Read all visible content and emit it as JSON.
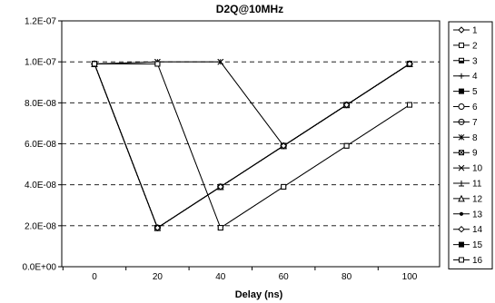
{
  "chart_data": {
    "type": "line",
    "title": "D2Q@10MHz",
    "xlabel": "Delay (ns)",
    "ylabel": "",
    "x": [
      0,
      20,
      40,
      60,
      80,
      100
    ],
    "x_ticks": [
      "0",
      "20",
      "40",
      "60",
      "80",
      "100"
    ],
    "ylim": [
      0,
      1.2e-07
    ],
    "y_ticks": [
      "0.0E+00",
      "2.0E-08",
      "4.0E-08",
      "6.0E-08",
      "8.0E-08",
      "1.0E-07",
      "1.2E-07"
    ],
    "y_tick_values": [
      0,
      2e-08,
      4e-08,
      6e-08,
      8e-08,
      1e-07,
      1.2e-07
    ],
    "grid": "horizontal dashed",
    "legend_position": "right",
    "series": [
      {
        "name": "1",
        "marker": "diamond-open",
        "values": [
          9.9e-08,
          1.9e-08,
          3.9e-08,
          5.9e-08,
          7.9e-08,
          9.9e-08
        ]
      },
      {
        "name": "2",
        "marker": "square-open",
        "values": [
          9.9e-08,
          1.9e-08,
          3.9e-08,
          5.9e-08,
          7.9e-08,
          9.9e-08
        ]
      },
      {
        "name": "3",
        "marker": "square-half",
        "values": [
          9.9e-08,
          1.9e-08,
          3.9e-08,
          5.9e-08,
          7.9e-08,
          9.9e-08
        ]
      },
      {
        "name": "4",
        "marker": "plus",
        "values": [
          9.9e-08,
          1.9e-08,
          3.9e-08,
          5.9e-08,
          7.9e-08,
          9.9e-08
        ]
      },
      {
        "name": "5",
        "marker": "square-filled",
        "values": [
          9.9e-08,
          1.9e-08,
          3.9e-08,
          5.9e-08,
          7.9e-08,
          9.9e-08
        ]
      },
      {
        "name": "6",
        "marker": "circle-open",
        "values": [
          9.9e-08,
          1.9e-08,
          3.9e-08,
          5.9e-08,
          7.9e-08,
          9.9e-08
        ]
      },
      {
        "name": "7",
        "marker": "circle-line",
        "values": [
          9.9e-08,
          1.9e-08,
          3.9e-08,
          5.9e-08,
          7.9e-08,
          9.9e-08
        ]
      },
      {
        "name": "8",
        "marker": "star",
        "values": [
          9.9e-08,
          1e-07,
          1e-07,
          5.9e-08,
          7.9e-08,
          9.9e-08
        ]
      },
      {
        "name": "9",
        "marker": "square-cross",
        "values": [
          9.9e-08,
          1.9e-08,
          3.9e-08,
          5.9e-08,
          7.9e-08,
          9.9e-08
        ]
      },
      {
        "name": "10",
        "marker": "x",
        "values": [
          9.9e-08,
          1e-07,
          1e-07,
          5.9e-08,
          7.9e-08,
          9.9e-08
        ]
      },
      {
        "name": "11",
        "marker": "triangle-line",
        "values": [
          9.9e-08,
          1.9e-08,
          3.9e-08,
          5.9e-08,
          7.9e-08,
          9.9e-08
        ]
      },
      {
        "name": "12",
        "marker": "triangle-open",
        "values": [
          9.9e-08,
          1.9e-08,
          3.9e-08,
          5.9e-08,
          7.9e-08,
          9.9e-08
        ]
      },
      {
        "name": "13",
        "marker": "dot",
        "values": [
          9.9e-08,
          1.9e-08,
          3.9e-08,
          5.9e-08,
          7.9e-08,
          9.9e-08
        ]
      },
      {
        "name": "14",
        "marker": "diamond-open",
        "values": [
          9.9e-08,
          1.9e-08,
          3.9e-08,
          5.9e-08,
          7.9e-08,
          9.9e-08
        ]
      },
      {
        "name": "15",
        "marker": "square-filled",
        "values": [
          9.9e-08,
          9.9e-08,
          1.9e-08,
          3.9e-08,
          5.9e-08,
          7.9e-08
        ]
      },
      {
        "name": "16",
        "marker": "square-open",
        "values": [
          9.9e-08,
          9.9e-08,
          1.9e-08,
          3.9e-08,
          5.9e-08,
          7.9e-08
        ]
      }
    ]
  }
}
